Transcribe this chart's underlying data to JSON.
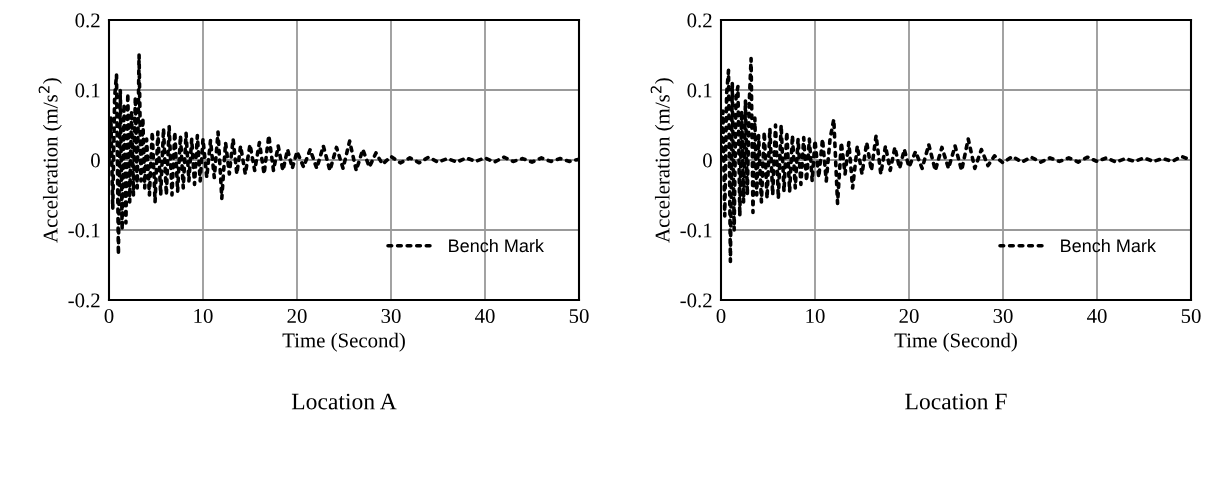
{
  "chart_data": [
    {
      "type": "line",
      "title": "Location A",
      "xlabel": "Time (Second)",
      "ylabel": "Acceleration (m/s$^{2}$)",
      "xlim": [
        0,
        50
      ],
      "xticks": [
        0,
        10,
        20,
        30,
        40,
        50
      ],
      "ylim": [
        -0.2,
        0.2
      ],
      "yticks": [
        -0.2,
        -0.1,
        0,
        0.1,
        0.2
      ],
      "grid": true,
      "legend": "bottom right",
      "line_style": "dotted",
      "x": [
        0,
        0.2,
        0.4,
        0.6,
        0.8,
        1.0,
        1.2,
        1.4,
        1.6,
        1.8,
        2.0,
        2.2,
        2.4,
        2.6,
        2.8,
        3.0,
        3.2,
        3.4,
        3.6,
        3.8,
        4.0,
        4.3,
        4.6,
        4.9,
        5.2,
        5.5,
        5.8,
        6.1,
        6.4,
        6.7,
        7.0,
        7.3,
        7.6,
        7.9,
        8.2,
        8.5,
        8.8,
        9.1,
        9.4,
        9.7,
        10.0,
        10.4,
        10.8,
        11.2,
        11.6,
        12.0,
        12.4,
        12.8,
        13.2,
        13.6,
        14.0,
        14.5,
        15,
        15.5,
        16,
        16.5,
        17,
        17.5,
        18,
        18.5,
        19,
        19.5,
        20,
        20.7,
        21.4,
        22.1,
        22.8,
        23.5,
        24.2,
        24.9,
        25.6,
        26.3,
        27,
        27.7,
        28.4,
        29.1,
        30,
        31,
        32,
        33,
        34,
        35,
        36,
        37,
        38,
        39,
        40,
        41,
        42,
        43,
        44,
        45,
        46,
        47,
        48,
        49,
        50
      ],
      "series": [
        {
          "name": "Bench Mark",
          "color": "#000000",
          "values": [
            0,
            0.06,
            -0.07,
            0.09,
            0.122,
            -0.135,
            0.1,
            -0.1,
            0.08,
            -0.09,
            0.095,
            -0.06,
            0.07,
            -0.05,
            0.09,
            -0.04,
            0.15,
            -0.03,
            0.06,
            -0.04,
            0.03,
            -0.05,
            0.04,
            -0.06,
            0.04,
            -0.05,
            0.045,
            -0.05,
            0.048,
            -0.05,
            0.04,
            -0.045,
            0.035,
            -0.04,
            0.038,
            -0.03,
            0.03,
            -0.035,
            0.035,
            -0.03,
            0.03,
            -0.025,
            0.028,
            -0.025,
            0.04,
            -0.055,
            0.025,
            -0.02,
            0.03,
            -0.02,
            0.02,
            -0.02,
            0.022,
            -0.015,
            0.025,
            -0.02,
            0.035,
            -0.015,
            0.02,
            -0.015,
            0.015,
            -0.012,
            0.012,
            -0.01,
            0.015,
            -0.012,
            0.02,
            -0.015,
            0.018,
            -0.012,
            0.027,
            -0.015,
            0.015,
            -0.01,
            0.01,
            -0.006,
            0.005,
            -0.004,
            0.003,
            -0.004,
            0.004,
            -0.003,
            0.002,
            -0.003,
            0.003,
            -0.002,
            0.003,
            -0.003,
            0.004,
            -0.002,
            0.002,
            -0.003,
            0.003,
            -0.002,
            0.002,
            -0.002,
            0.001
          ]
        }
      ]
    },
    {
      "type": "line",
      "title": "Location F",
      "xlabel": "Time (Second)",
      "ylabel": "Acceleration (m/s$^{2}$)",
      "xlim": [
        0,
        50
      ],
      "xticks": [
        0,
        10,
        20,
        30,
        40,
        50
      ],
      "ylim": [
        -0.2,
        0.2
      ],
      "yticks": [
        -0.2,
        -0.1,
        0,
        0.1,
        0.2
      ],
      "grid": true,
      "legend": "bottom right",
      "line_style": "dotted",
      "x": [
        0,
        0.2,
        0.4,
        0.6,
        0.8,
        1.0,
        1.2,
        1.4,
        1.6,
        1.8,
        2.0,
        2.2,
        2.4,
        2.6,
        2.8,
        3.0,
        3.2,
        3.4,
        3.6,
        3.8,
        4.0,
        4.3,
        4.6,
        4.9,
        5.2,
        5.5,
        5.8,
        6.1,
        6.4,
        6.7,
        7.0,
        7.3,
        7.6,
        7.9,
        8.2,
        8.5,
        8.8,
        9.1,
        9.4,
        9.7,
        10.0,
        10.4,
        10.8,
        11.2,
        11.6,
        12.0,
        12.4,
        12.8,
        13.2,
        13.6,
        14.0,
        14.5,
        15,
        15.5,
        16,
        16.5,
        17,
        17.5,
        18,
        18.5,
        19,
        19.5,
        20,
        20.7,
        21.4,
        22.1,
        22.8,
        23.5,
        24.2,
        24.9,
        25.6,
        26.3,
        27,
        27.7,
        28.4,
        29.1,
        30,
        31,
        32,
        33,
        34,
        35,
        36,
        37,
        38,
        39,
        40,
        41,
        42,
        43,
        44,
        45,
        46,
        47,
        48,
        49,
        50
      ],
      "series": [
        {
          "name": "Bench Mark",
          "color": "#000000",
          "values": [
            0,
            0.07,
            -0.08,
            0.095,
            0.128,
            -0.145,
            0.11,
            -0.1,
            0.09,
            0.105,
            -0.08,
            0.07,
            -0.06,
            0.085,
            -0.05,
            0.08,
            0.145,
            -0.075,
            0.06,
            -0.05,
            0.035,
            -0.06,
            0.04,
            -0.055,
            0.045,
            -0.05,
            0.05,
            -0.055,
            0.05,
            -0.045,
            0.04,
            -0.045,
            0.035,
            -0.04,
            0.03,
            -0.035,
            0.032,
            -0.03,
            0.03,
            -0.03,
            0.028,
            -0.025,
            0.03,
            -0.03,
            0.03,
            0.058,
            -0.062,
            0.025,
            -0.02,
            0.025,
            -0.04,
            0.02,
            -0.02,
            0.025,
            -0.015,
            0.035,
            -0.02,
            0.02,
            -0.015,
            0.018,
            -0.012,
            0.015,
            -0.01,
            0.012,
            -0.012,
            0.022,
            -0.015,
            0.018,
            -0.012,
            0.02,
            -0.015,
            0.03,
            -0.012,
            0.015,
            -0.008,
            0.006,
            -0.004,
            0.005,
            -0.003,
            0.004,
            -0.003,
            0.003,
            -0.002,
            0.003,
            -0.003,
            0.004,
            -0.002,
            0.003,
            -0.003,
            0.002,
            -0.002,
            0.003,
            -0.002,
            0.002,
            -0.002,
            0.005,
            0
          ]
        }
      ]
    }
  ]
}
